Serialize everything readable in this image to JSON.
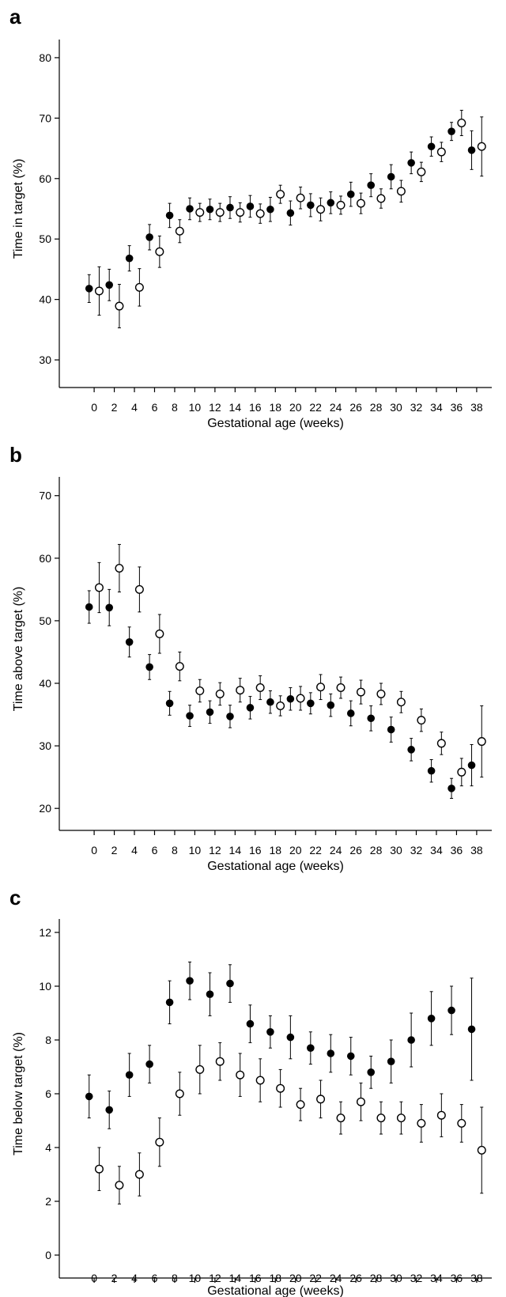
{
  "chart_data": [
    {
      "type": "scatter",
      "panel_label": "a",
      "xlabel": "Gestational age (weeks)",
      "ylabel": "Time in target (%)",
      "ylim": [
        27,
        83
      ],
      "yticks": [
        30,
        40,
        50,
        60,
        70,
        80
      ],
      "xlim": [
        -1.5,
        39.5
      ],
      "xticks": [
        0,
        2,
        4,
        6,
        8,
        10,
        12,
        14,
        16,
        18,
        20,
        22,
        24,
        26,
        28,
        30,
        32,
        34,
        36,
        38
      ],
      "grid": false,
      "series": [
        {
          "marker": "filled",
          "x": [
            -0.5,
            1.5,
            3.5,
            5.5,
            7.5,
            9.5,
            11.5,
            13.5,
            15.5,
            17.5,
            19.5,
            21.5,
            23.5,
            25.5,
            27.5,
            29.5,
            31.5,
            33.5,
            35.5,
            37.5
          ],
          "y": [
            41.8,
            42.4,
            46.8,
            50.3,
            53.9,
            55.0,
            54.9,
            55.2,
            55.4,
            54.9,
            54.3,
            55.6,
            56.0,
            57.4,
            58.9,
            60.3,
            62.6,
            65.3,
            67.8,
            64.7
          ],
          "err": [
            2.3,
            2.6,
            2.1,
            2.1,
            2.0,
            1.8,
            1.7,
            1.8,
            1.8,
            2.0,
            2.0,
            1.9,
            1.8,
            2.0,
            1.9,
            2.0,
            1.8,
            1.6,
            1.5,
            3.2
          ]
        },
        {
          "marker": "open",
          "x": [
            0.5,
            2.5,
            4.5,
            6.5,
            8.5,
            10.5,
            12.5,
            14.5,
            16.5,
            18.5,
            20.5,
            22.5,
            24.5,
            26.5,
            28.5,
            30.5,
            32.5,
            34.5,
            36.5,
            38.5
          ],
          "y": [
            41.4,
            38.9,
            42.0,
            47.9,
            51.3,
            54.4,
            54.4,
            54.4,
            54.2,
            57.4,
            56.8,
            54.9,
            55.6,
            55.9,
            56.7,
            57.9,
            61.1,
            64.4,
            69.2,
            65.3
          ],
          "err": [
            4.0,
            3.6,
            3.1,
            2.6,
            1.9,
            1.5,
            1.5,
            1.6,
            1.6,
            1.5,
            1.8,
            1.9,
            1.5,
            1.7,
            1.6,
            1.8,
            1.6,
            1.6,
            2.1,
            4.9
          ]
        }
      ]
    },
    {
      "type": "scatter",
      "panel_label": "b",
      "xlabel": "Gestational age (weeks)",
      "ylabel": "Time above target (%)",
      "ylim": [
        18,
        73
      ],
      "yticks": [
        20,
        30,
        40,
        50,
        60,
        70
      ],
      "xlim": [
        -1.5,
        39.5
      ],
      "xticks": [
        0,
        2,
        4,
        6,
        8,
        10,
        12,
        14,
        16,
        18,
        20,
        22,
        24,
        26,
        28,
        30,
        32,
        34,
        36,
        38
      ],
      "grid": false,
      "series": [
        {
          "marker": "filled",
          "x": [
            -0.5,
            1.5,
            3.5,
            5.5,
            7.5,
            9.5,
            11.5,
            13.5,
            15.5,
            17.5,
            19.5,
            21.5,
            23.5,
            25.5,
            27.5,
            29.5,
            31.5,
            33.5,
            35.5,
            37.5
          ],
          "y": [
            52.2,
            52.1,
            46.6,
            42.6,
            36.8,
            34.8,
            35.4,
            34.7,
            36.1,
            37.0,
            37.5,
            36.8,
            36.5,
            35.2,
            34.4,
            32.6,
            29.4,
            26.0,
            23.2,
            26.9
          ],
          "err": [
            2.6,
            2.9,
            2.4,
            2.0,
            1.9,
            1.7,
            1.8,
            1.8,
            1.8,
            1.8,
            1.8,
            1.7,
            1.8,
            2.0,
            2.0,
            2.0,
            1.8,
            1.8,
            1.6,
            3.3
          ]
        },
        {
          "marker": "open",
          "x": [
            0.5,
            2.5,
            4.5,
            6.5,
            8.5,
            10.5,
            12.5,
            14.5,
            16.5,
            18.5,
            20.5,
            22.5,
            24.5,
            26.5,
            28.5,
            30.5,
            32.5,
            34.5,
            36.5,
            38.5
          ],
          "y": [
            55.3,
            58.4,
            55.0,
            47.9,
            42.7,
            38.8,
            38.3,
            38.9,
            39.3,
            36.4,
            37.6,
            39.4,
            39.3,
            38.6,
            38.3,
            37.0,
            34.1,
            30.4,
            25.8,
            30.7
          ],
          "err": [
            4.0,
            3.8,
            3.6,
            3.1,
            2.3,
            1.8,
            1.8,
            1.9,
            1.9,
            1.6,
            1.9,
            2.0,
            1.7,
            1.9,
            1.7,
            1.7,
            1.8,
            1.8,
            2.2,
            5.7
          ]
        }
      ]
    },
    {
      "type": "scatter",
      "panel_label": "c",
      "xlabel": "Gestational age (weeks)",
      "ylabel": "Time below target (%)",
      "ylim": [
        -0.5,
        12.5
      ],
      "yticks": [
        0,
        2,
        4,
        6,
        8,
        10,
        12
      ],
      "xlim": [
        -1.5,
        39.5
      ],
      "xticks": [
        0,
        2,
        4,
        6,
        8,
        10,
        12,
        14,
        16,
        18,
        20,
        22,
        24,
        26,
        28,
        30,
        32,
        34,
        36,
        38
      ],
      "grid": false,
      "series": [
        {
          "marker": "filled",
          "x": [
            -0.5,
            1.5,
            3.5,
            5.5,
            7.5,
            9.5,
            11.5,
            13.5,
            15.5,
            17.5,
            19.5,
            21.5,
            23.5,
            25.5,
            27.5,
            29.5,
            31.5,
            33.5,
            35.5,
            37.5
          ],
          "y": [
            5.9,
            5.4,
            6.7,
            7.1,
            9.4,
            10.2,
            9.7,
            10.1,
            8.6,
            8.3,
            8.1,
            7.7,
            7.5,
            7.4,
            6.8,
            7.2,
            8.0,
            8.8,
            9.1,
            8.4
          ],
          "err": [
            0.8,
            0.7,
            0.8,
            0.7,
            0.8,
            0.7,
            0.8,
            0.7,
            0.7,
            0.6,
            0.8,
            0.6,
            0.7,
            0.7,
            0.6,
            0.8,
            1.0,
            1.0,
            0.9,
            1.9
          ]
        },
        {
          "marker": "open",
          "x": [
            0.5,
            2.5,
            4.5,
            6.5,
            8.5,
            10.5,
            12.5,
            14.5,
            16.5,
            18.5,
            20.5,
            22.5,
            24.5,
            26.5,
            28.5,
            30.5,
            32.5,
            34.5,
            36.5,
            38.5
          ],
          "y": [
            3.2,
            2.6,
            3.0,
            4.2,
            6.0,
            6.9,
            7.2,
            6.7,
            6.5,
            6.2,
            5.6,
            5.8,
            5.1,
            5.7,
            5.1,
            5.1,
            4.9,
            5.2,
            4.9,
            3.9
          ],
          "err": [
            0.8,
            0.7,
            0.8,
            0.9,
            0.8,
            0.9,
            0.7,
            0.8,
            0.8,
            0.7,
            0.6,
            0.7,
            0.6,
            0.7,
            0.6,
            0.6,
            0.7,
            0.8,
            0.7,
            1.6
          ]
        }
      ]
    }
  ]
}
